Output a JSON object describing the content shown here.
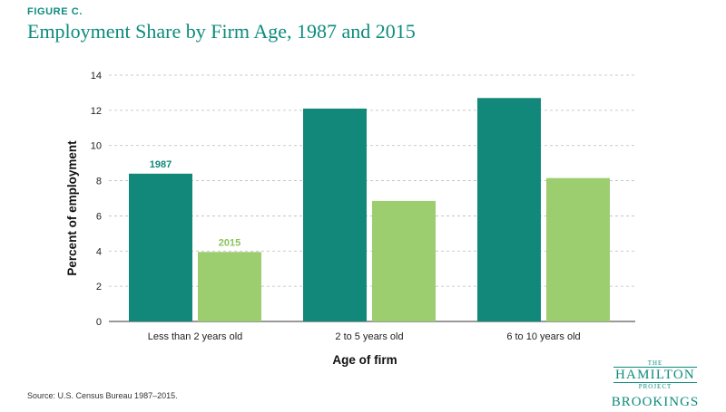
{
  "figure_label": "FIGURE C.",
  "title": "Employment Share by Firm Age, 1987 and 2015",
  "source": "Source: U.S. Census Bureau 1987–2015.",
  "logo": {
    "the": "THE",
    "hamilton": "HAMILTON",
    "project": "PROJECT",
    "brookings": "BROOKINGS"
  },
  "colors": {
    "series_1987": "#12887a",
    "series_2015": "#9ccd6e",
    "accent": "#0d8c7d",
    "grid": "#bbbbbb"
  },
  "chart_data": {
    "type": "bar",
    "categories": [
      "Less than 2 years old",
      "2 to 5 years old",
      "6 to 10 years old"
    ],
    "series": [
      {
        "name": "1987",
        "values": [
          8.4,
          12.1,
          12.7
        ]
      },
      {
        "name": "2015",
        "values": [
          3.95,
          6.85,
          8.15
        ]
      }
    ],
    "xlabel": "Age of firm",
    "ylabel": "Percent of employment",
    "ylim": [
      0,
      14
    ],
    "yticks": [
      0,
      2,
      4,
      6,
      8,
      10,
      12,
      14
    ],
    "grid": true,
    "legend": "inline labels above first category bars"
  }
}
